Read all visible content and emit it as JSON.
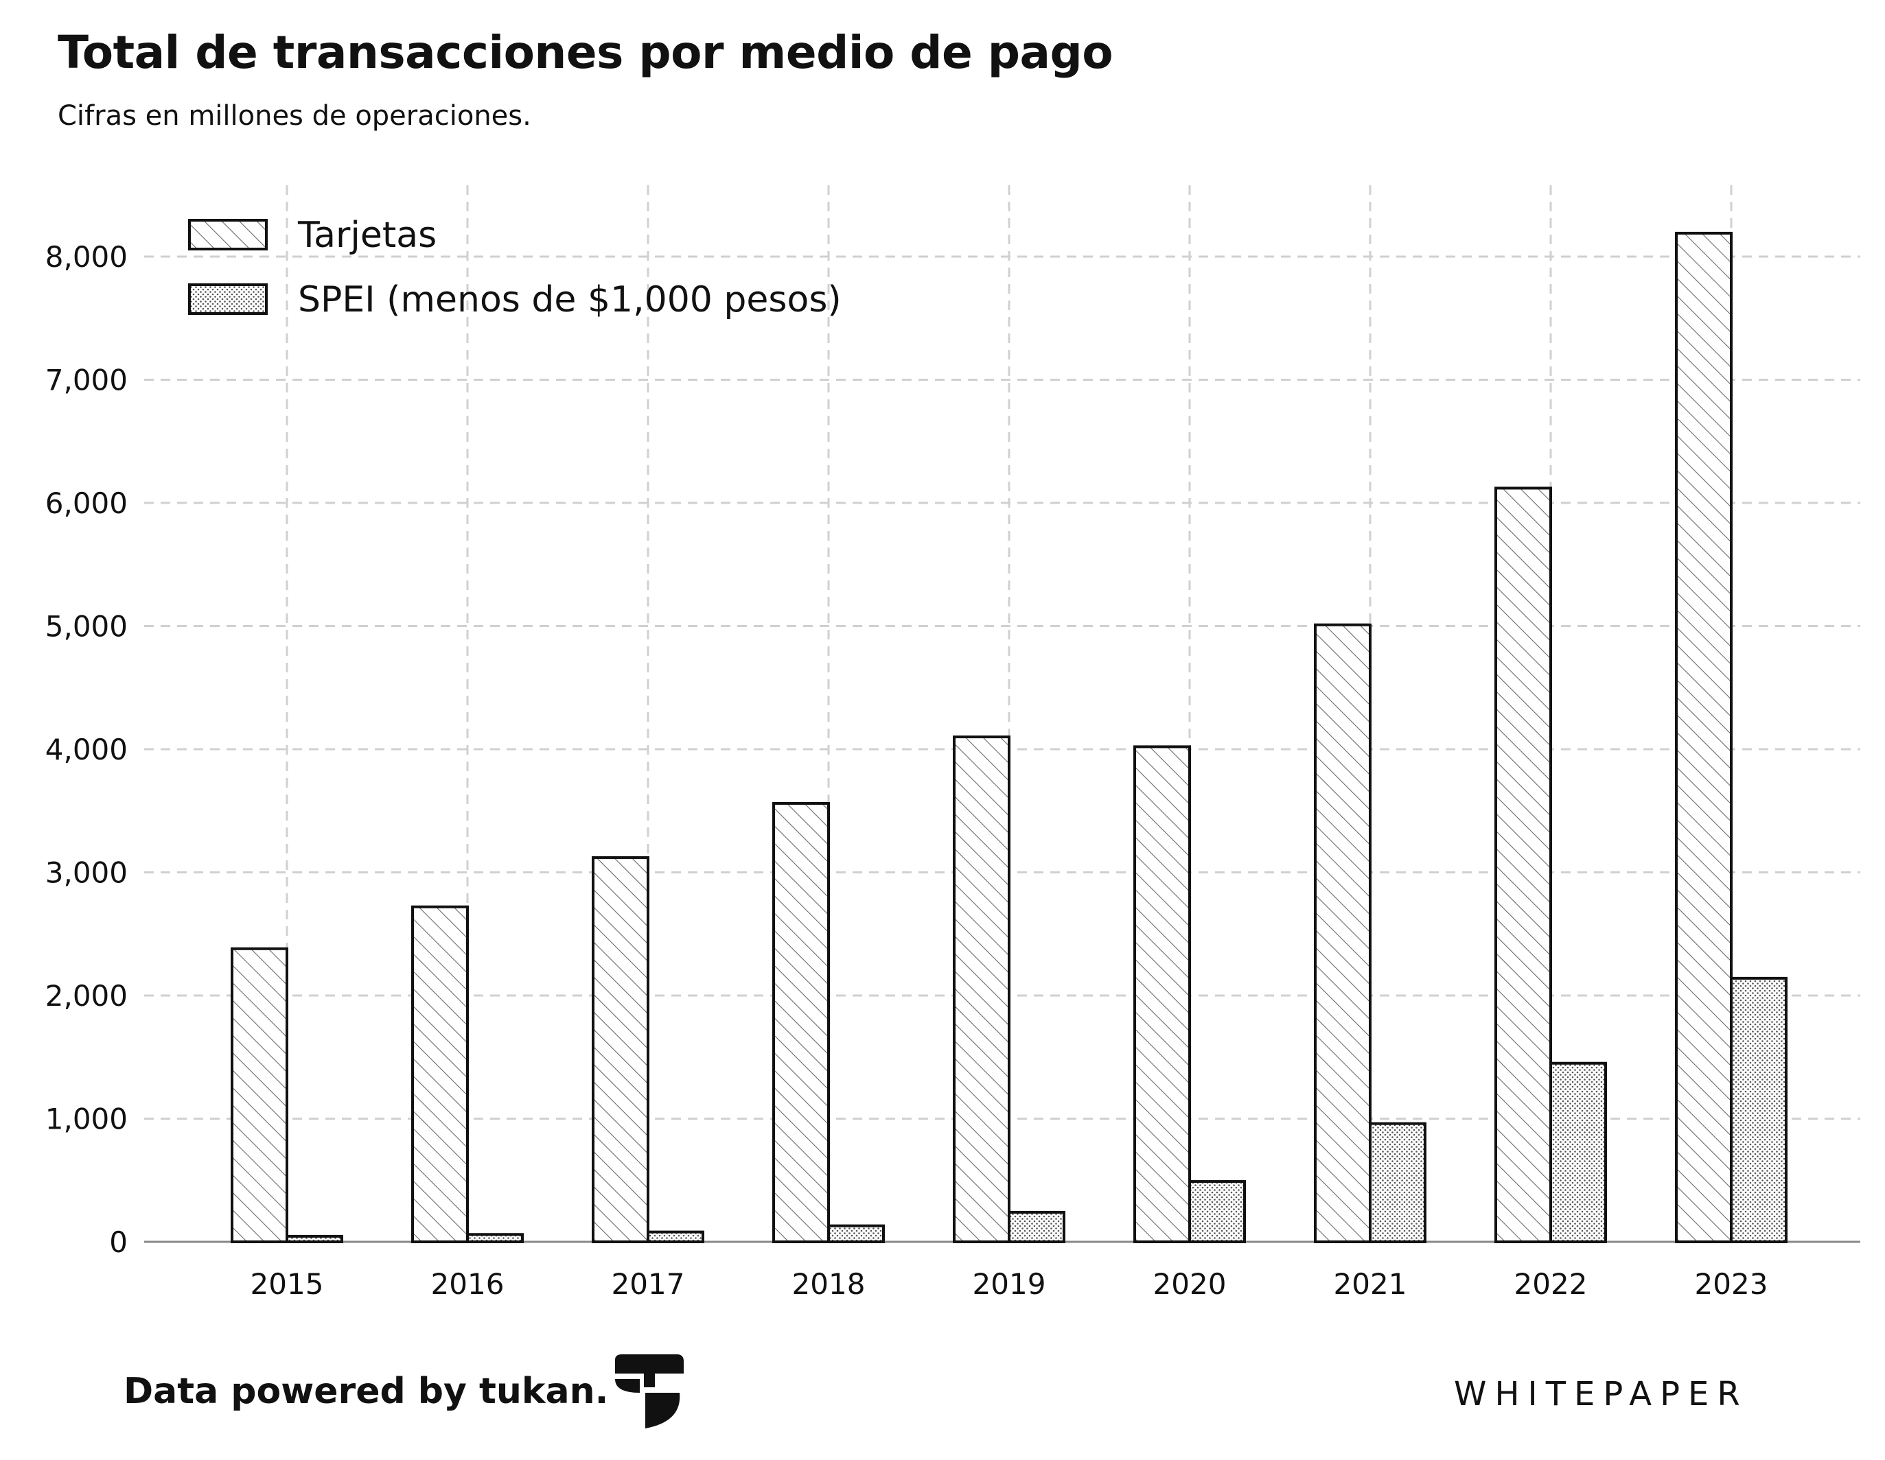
{
  "chart_data": {
    "type": "bar",
    "title": "Total de transacciones por medio de pago",
    "subtitle": "Cifras en millones de operaciones.",
    "categories": [
      "2015",
      "2016",
      "2017",
      "2018",
      "2019",
      "2020",
      "2021",
      "2022",
      "2023"
    ],
    "series": [
      {
        "name": "Tarjetas",
        "pattern": "diagonal-hatch",
        "values": [
          2380,
          2720,
          3120,
          3560,
          4100,
          4020,
          5010,
          6120,
          8190
        ]
      },
      {
        "name": "SPEI (menos de $1,000 pesos)",
        "pattern": "dots",
        "values": [
          45,
          60,
          80,
          130,
          240,
          490,
          960,
          1450,
          2140
        ]
      }
    ],
    "ylim": [
      0,
      8300
    ],
    "yticks": [
      0,
      1000,
      2000,
      3000,
      4000,
      5000,
      6000,
      7000,
      8000
    ],
    "ytick_labels": [
      "0",
      "1,000",
      "2,000",
      "3,000",
      "4,000",
      "5,000",
      "6,000",
      "7,000",
      "8,000"
    ],
    "xlabel": "",
    "ylabel": "",
    "grid": true,
    "legend_position": "top-left"
  },
  "footer": {
    "credit": "Data powered by tukan.",
    "brand": "WHITEPAPER",
    "logo_icon": "tukan-logo-icon"
  },
  "colors": {
    "bar_fill": "#ffffff",
    "bar_stroke": "#111111",
    "hatch": "#555555",
    "grid": "#d0d0d0",
    "axis": "#888888",
    "text": "#111111"
  }
}
